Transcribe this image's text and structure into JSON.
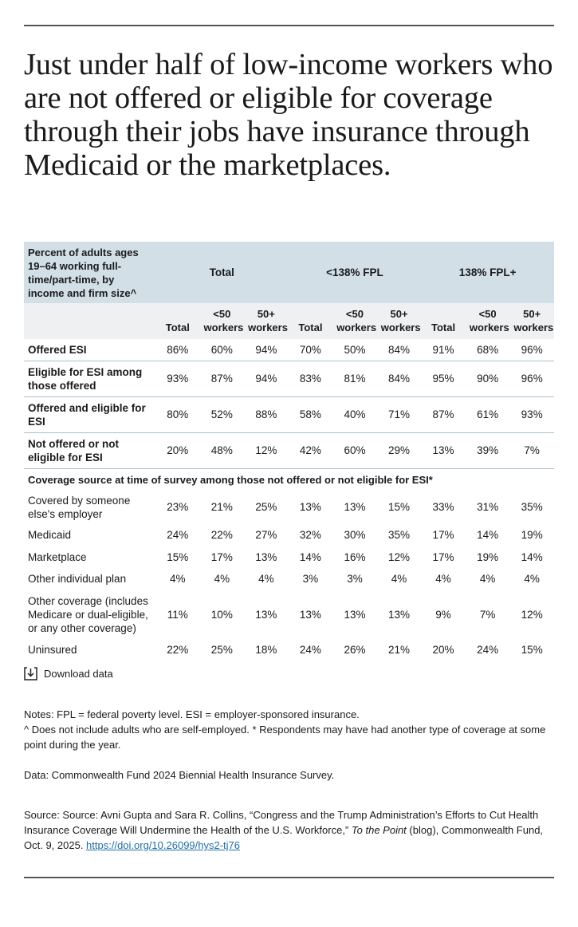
{
  "title": "Just under half of low-income workers who are not offered or eligible for coverage through their jobs have insurance through Medicaid or the marketplaces.",
  "table": {
    "corner": "Percent of adults ages 19–64 working full-time/part-time, by income and firm size^",
    "groups": [
      "Total",
      "<138% FPL",
      "138% FPL+"
    ],
    "subheaders": [
      "Total",
      "<50 workers",
      "50+ workers",
      "Total",
      "<50 workers",
      "50+ workers",
      "Total",
      "<50 workers",
      "50+ workers"
    ],
    "rows": [
      [
        "Offered ESI",
        "86%",
        "60%",
        "94%",
        "70%",
        "50%",
        "84%",
        "91%",
        "68%",
        "96%"
      ],
      [
        "Eligible for ESI among those offered",
        "93%",
        "87%",
        "94%",
        "83%",
        "81%",
        "84%",
        "95%",
        "90%",
        "96%"
      ],
      [
        "Offered and eligible for ESI",
        "80%",
        "52%",
        "88%",
        "58%",
        "40%",
        "71%",
        "87%",
        "61%",
        "93%"
      ],
      [
        "Not offered or not eligible for ESI",
        "20%",
        "48%",
        "12%",
        "42%",
        "60%",
        "29%",
        "13%",
        "39%",
        "7%"
      ]
    ],
    "section": "Coverage source at time of survey among those not offered or not eligible for ESI*",
    "section_rows": [
      [
        "Covered by someone else's employer",
        "23%",
        "21%",
        "25%",
        "13%",
        "13%",
        "15%",
        "33%",
        "31%",
        "35%"
      ],
      [
        "Medicaid",
        "24%",
        "22%",
        "27%",
        "32%",
        "30%",
        "35%",
        "17%",
        "14%",
        "19%"
      ],
      [
        "Marketplace",
        "15%",
        "17%",
        "13%",
        "14%",
        "16%",
        "12%",
        "17%",
        "19%",
        "14%"
      ],
      [
        "Other individual plan",
        "4%",
        "4%",
        "4%",
        "3%",
        "3%",
        "4%",
        "4%",
        "4%",
        "4%"
      ],
      [
        "Other coverage (includes Medicare or dual-eligible, or any other coverage)",
        "11%",
        "10%",
        "13%",
        "13%",
        "13%",
        "13%",
        "9%",
        "7%",
        "12%"
      ],
      [
        "Uninsured",
        "22%",
        "25%",
        "18%",
        "24%",
        "26%",
        "21%",
        "20%",
        "24%",
        "15%"
      ]
    ]
  },
  "download": "Download data",
  "notes": [
    "Notes: FPL = federal poverty level. ESI = employer-sponsored insurance.",
    "^ Does not include adults who are self-employed. * Respondents may have had another type of coverage at some point during the year."
  ],
  "data_note": "Data: Commonwealth Fund 2024 Biennial Health Insurance Survey.",
  "source": {
    "before": "Source: Source: Avni Gupta and Sara R. Collins, “Congress and the Trump Administration’s Efforts to Cut Health Insurance Coverage Will Undermine the Health of the U.S. Workforce,” ",
    "italic": "To the Point",
    "after": " (blog), Commonwealth Fund, Oct. 9, 2025. ",
    "link": "https://doi.org/10.26099/hys2-tj76"
  }
}
